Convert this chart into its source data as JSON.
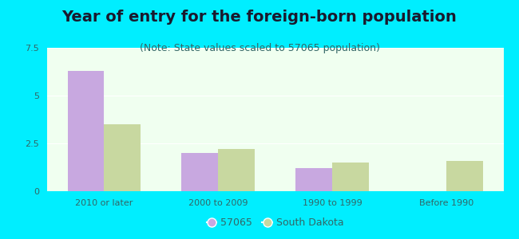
{
  "title": "Year of entry for the foreign-born population",
  "subtitle": "(Note: State values scaled to 57065 population)",
  "categories": [
    "2010 or later",
    "2000 to 2009",
    "1990 to 1999",
    "Before 1990"
  ],
  "series_57065": [
    6.3,
    2.0,
    1.2,
    0.0
  ],
  "series_sd": [
    3.5,
    2.2,
    1.5,
    1.6
  ],
  "color_57065": "#c8a8e0",
  "color_sd": "#c8d8a0",
  "ylim": [
    0,
    7.5
  ],
  "yticks": [
    0,
    2.5,
    5,
    7.5
  ],
  "bg_color": "#00eeff",
  "plot_bg": "#f0fff0",
  "bar_width": 0.32,
  "title_fontsize": 14,
  "subtitle_fontsize": 9,
  "tick_fontsize": 8,
  "legend_fontsize": 9,
  "title_color": "#1a1a2e",
  "subtitle_color": "#336666",
  "tick_color": "#336666",
  "label_color": "#336666"
}
